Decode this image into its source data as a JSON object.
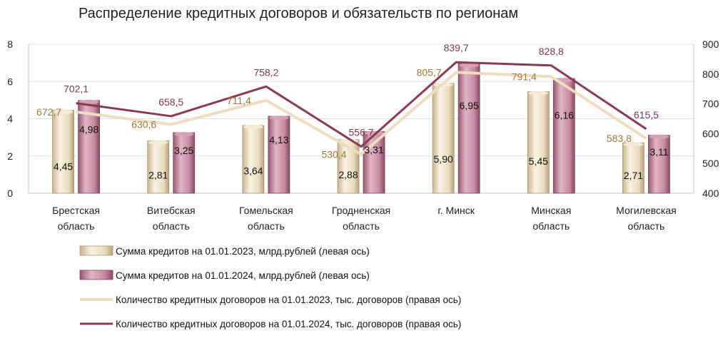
{
  "chart_data": {
    "type": "bar",
    "title": "Распределение кредитных договоров и обязательств по регионам",
    "categories": [
      [
        "Брестская",
        "область"
      ],
      [
        "Витебская",
        "область"
      ],
      [
        "Гомельская",
        "область"
      ],
      [
        "Гродненская",
        "область"
      ],
      [
        "г. Минск"
      ],
      [
        "Минская",
        "область"
      ],
      [
        "Могилевская",
        "область"
      ]
    ],
    "left_axis": {
      "min": 0,
      "max": 8,
      "step": 2,
      "ticks": [
        "0",
        "2",
        "4",
        "6",
        "8"
      ]
    },
    "right_axis": {
      "min": 400,
      "max": 900,
      "step": 100,
      "ticks": [
        "400",
        "500",
        "600",
        "700",
        "800",
        "900"
      ]
    },
    "grid": true,
    "legend_position": "bottom",
    "bar_series": [
      {
        "name": "Сумма кредитов на 01.01.2023, млрд.рублей (левая ось)",
        "values": [
          4.45,
          2.81,
          3.64,
          2.88,
          5.9,
          5.45,
          2.71
        ],
        "labels": [
          "4,45",
          "2,81",
          "3,64",
          "2,88",
          "5,90",
          "5,45",
          "2,71"
        ],
        "color": "#efe3c8"
      },
      {
        "name": "Сумма кредитов на  01.01.2024, млрд.рублей (левая ось)",
        "values": [
          4.98,
          3.25,
          4.13,
          3.31,
          6.95,
          6.16,
          3.11
        ],
        "labels": [
          "4,98",
          "3,25",
          "4,13",
          "3,31",
          "6,95",
          "6,16",
          "3,11"
        ],
        "color": "#c68aa0"
      }
    ],
    "line_series": [
      {
        "name": "Количество кредитных договоров на 01.01.2023, тыс. договоров (правая ось)",
        "values": [
          672.7,
          630.6,
          711.4,
          530.4,
          805.7,
          791.4,
          583.8
        ],
        "labels": [
          "672,7",
          "630,6",
          "711,4",
          "530,4",
          "805,7",
          "791,4",
          "583,8"
        ],
        "color": "#f0dcc0"
      },
      {
        "name": "Количество кредитных договоров на 01.01.2024, тыс. договоров (правая ось)",
        "values": [
          702.1,
          658.5,
          758.2,
          556.7,
          839.7,
          828.8,
          615.5
        ],
        "labels": [
          "702,1",
          "658,5",
          "758,2",
          "556,7",
          "839,7",
          "828,8",
          "615,5"
        ],
        "color": "#8b3a55"
      }
    ]
  }
}
